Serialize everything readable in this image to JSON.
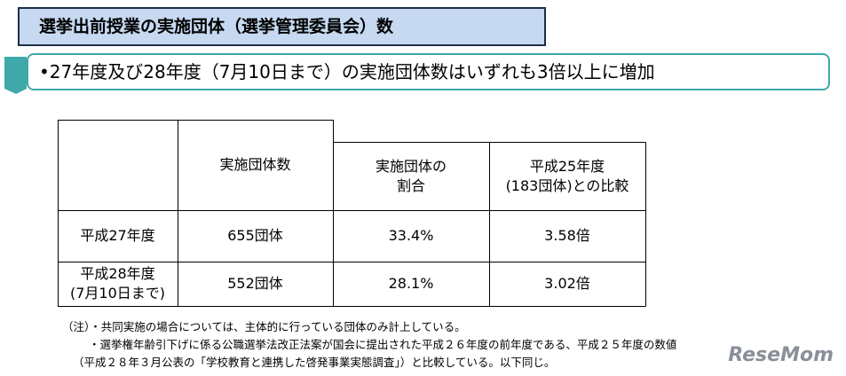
{
  "header": {
    "title": "選挙出前授業の実施団体（選挙管理委員会）数"
  },
  "summary": "•27年度及び28年度（7月10日まで）の実施団体数はいずれも3倍以上に増加",
  "table": {
    "header": [
      "実施団体数",
      "実施団体の\n割合",
      "平成25年度\n(183団体)との比較"
    ],
    "rows": [
      [
        "平成27年度",
        "655団体",
        "33.4%",
        "3.58倍"
      ],
      [
        "平成28年度\n(7月10日まで)",
        "552団体",
        "28.1%",
        "3.02倍"
      ]
    ]
  },
  "notes": [
    "（注）・共同実施の場合については、主体的に行っている団体のみ計上している。",
    "・選挙権年齢引下げに係る公職選挙法改正法案が国会に提出された平成２６年度の前年度である、平成２５年度の数値",
    "（平成２８年３月公表の「学校教育と連携した啓発事業実態調査」）と比較している。以下同じ。"
  ],
  "watermark": "ReseMom"
}
